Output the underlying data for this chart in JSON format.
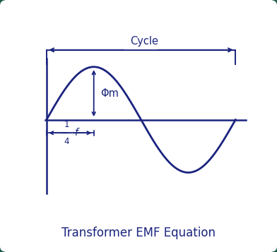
{
  "title": "Transformer EMF Equation",
  "title_fontsize": 12,
  "title_color": "#1a237e",
  "curve_color": "#1a237e",
  "axis_color": "#1a237e",
  "border_color": "#1a5c4a",
  "background_color": "#ffffff",
  "phi_label": "Φm",
  "cycle_label": "Cycle",
  "curve_linewidth": 2.0,
  "axis_linewidth": 1.8
}
